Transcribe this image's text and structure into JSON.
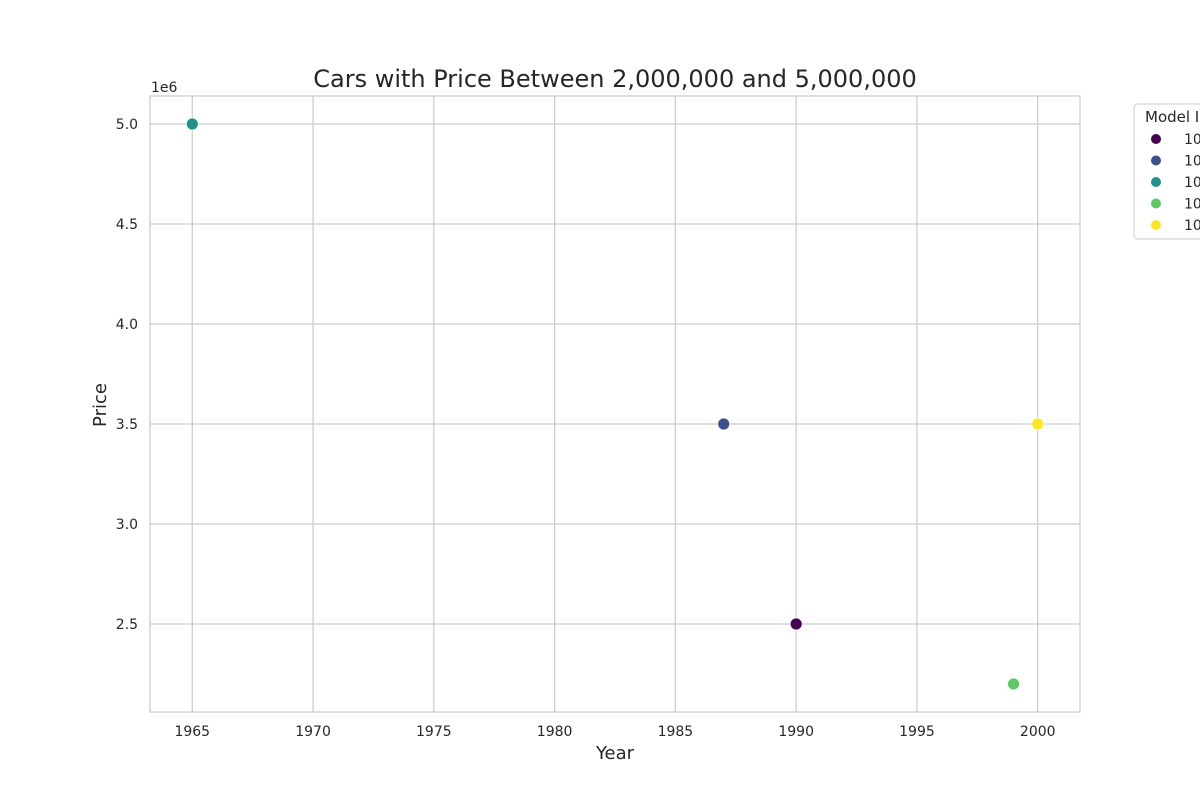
{
  "chart_data": {
    "type": "scatter",
    "title": "Cars with Price Between 2,000,000 and 5,000,000",
    "xlabel": "Year",
    "ylabel": "Price",
    "y_offset_label": "1e6",
    "xlim": [
      1963.25,
      2001.75
    ],
    "ylim": [
      2060000,
      5140000
    ],
    "x_ticks": [
      1965,
      1970,
      1975,
      1980,
      1985,
      1990,
      1995,
      2000
    ],
    "y_ticks": [
      2.5,
      3.0,
      3.5,
      4.0,
      4.5,
      5.0
    ],
    "y_tick_scale": 1000000,
    "grid": true,
    "legend": {
      "title": "Model I",
      "placement": "upper right outside plot (clipped)",
      "entries": [
        {
          "label": "10",
          "color": "#440154"
        },
        {
          "label": "10",
          "color": "#3b528b"
        },
        {
          "label": "10",
          "color": "#21918c"
        },
        {
          "label": "10",
          "color": "#5ec962"
        },
        {
          "label": "10",
          "color": "#fde725"
        }
      ]
    },
    "points": [
      {
        "x": 1990,
        "y": 2500000,
        "color": "#440154"
      },
      {
        "x": 1987,
        "y": 3500000,
        "color": "#3b528b"
      },
      {
        "x": 1965,
        "y": 5000000,
        "color": "#21918c"
      },
      {
        "x": 1999,
        "y": 2200000,
        "color": "#5ec962"
      },
      {
        "x": 2000,
        "y": 3500000,
        "color": "#fde725"
      }
    ]
  }
}
